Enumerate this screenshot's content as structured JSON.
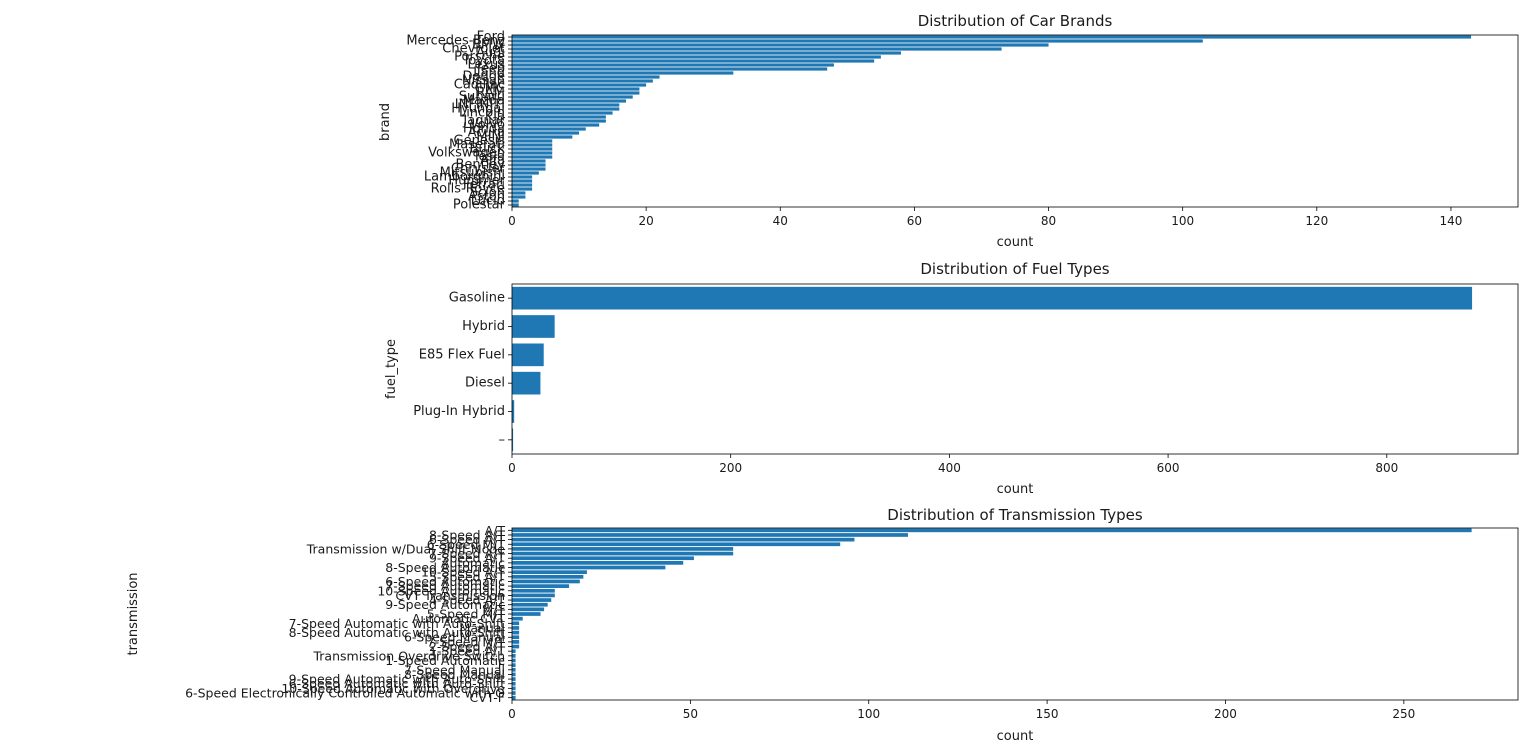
{
  "chart_data": [
    {
      "type": "bar",
      "orientation": "horizontal",
      "title": "Distribution of Car Brands",
      "xlabel": "count",
      "ylabel": "brand",
      "xlim": [
        0,
        150
      ],
      "xticks": [
        0,
        20,
        40,
        60,
        80,
        100,
        120,
        140
      ],
      "grid": false,
      "bar_color": "#1f77b4",
      "categories": [
        "Ford",
        "Mercedes-Benz",
        "BMW",
        "Chevrolet",
        "Audi",
        "Porsche",
        "Toyota",
        "Lexus",
        "Jeep",
        "Land",
        "Dodge",
        "Nissan",
        "Cadillac",
        "GMC",
        "RAM",
        "Subaru",
        "Mazda",
        "INFINITI",
        "Hyundai",
        "Lincoln",
        "Kia",
        "Jaguar",
        "Volvo",
        "Honda",
        "Acura",
        "MINI",
        "Genesis",
        "Maserati",
        "Buick",
        "Volkswagen",
        "Tesla",
        "Alfa",
        "Bentley",
        "Chrysler",
        "Mitsubishi",
        "Lamborghini",
        "Hummer",
        "Ferrari",
        "Rolls-Royce",
        "Scion",
        "Aston",
        "Lucid",
        "Polestar"
      ],
      "values": [
        143,
        103,
        80,
        73,
        58,
        55,
        54,
        48,
        47,
        33,
        22,
        21,
        20,
        19,
        19,
        18,
        17,
        16,
        16,
        15,
        14,
        14,
        13,
        11,
        10,
        9,
        6,
        6,
        6,
        6,
        6,
        5,
        5,
        5,
        4,
        3,
        3,
        3,
        3,
        2,
        2,
        1,
        1
      ]
    },
    {
      "type": "bar",
      "orientation": "horizontal",
      "title": "Distribution of Fuel Types",
      "xlabel": "count",
      "ylabel": "fuel_type",
      "xlim": [
        0,
        920
      ],
      "xticks": [
        0,
        200,
        400,
        600,
        800
      ],
      "grid": false,
      "bar_color": "#1f77b4",
      "categories": [
        "Gasoline",
        "Hybrid",
        "E85 Flex Fuel",
        "Diesel",
        "Plug-In Hybrid",
        "–"
      ],
      "values": [
        878,
        39,
        29,
        26,
        2,
        1
      ]
    },
    {
      "type": "bar",
      "orientation": "horizontal",
      "title": "Distribution of Transmission Types",
      "xlabel": "count",
      "ylabel": "transmission",
      "xlim": [
        0,
        282
      ],
      "xticks": [
        0,
        50,
        100,
        150,
        200,
        250
      ],
      "grid": false,
      "bar_color": "#1f77b4",
      "categories": [
        "A/T",
        "8-Speed A/T",
        "6-Speed A/T",
        "6-Speed M/T",
        "Transmission w/Dual Shift Mode",
        "7-Speed A/T",
        "9-Speed A/T",
        "Automatic",
        "8-Speed Automatic",
        "10-Speed A/T",
        "5-Speed A/T",
        "6-Speed Automatic",
        "7-Speed Automatic",
        "10-Speed Automatic",
        "CVT Transmission",
        "4-Speed A/T",
        "9-Speed Automatic",
        "M/T",
        "5-Speed M/T",
        "Automatic CVT",
        "7-Speed Automatic with Auto-Shift",
        "Manual",
        "8-Speed Automatic with Auto-Shift",
        "6-Speed Manual",
        "7-Speed M/T",
        "2-Speed A/T",
        "1-Speed A/T",
        "Transmission Overdrive Switch",
        "1-Speed Automatic",
        "F",
        "7-Speed Manual",
        "8-Speed Manual",
        "9-Speed Automatic with Auto-Shift",
        "6-Speed Automatic with Auto-Shift",
        "10-Speed Automatic with Overdrive",
        "6-Speed Electronically Controlled Automatic with O",
        "CVT-F"
      ],
      "values": [
        269,
        111,
        96,
        92,
        62,
        62,
        51,
        48,
        43,
        21,
        20,
        19,
        16,
        12,
        12,
        11,
        10,
        9,
        8,
        3,
        2,
        2,
        2,
        2,
        2,
        2,
        1,
        1,
        1,
        1,
        1,
        1,
        1,
        1,
        1,
        1,
        1
      ]
    }
  ]
}
